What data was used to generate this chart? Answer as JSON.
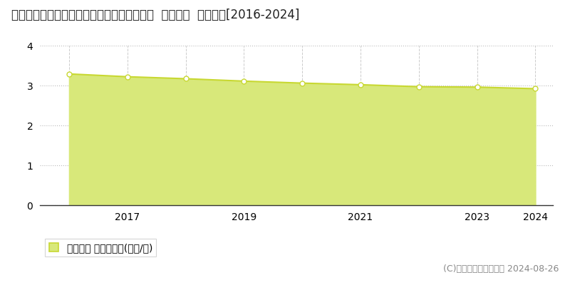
{
  "title": "新潟県上越市大字有間川字家浦８０９番１外  地価公示  地価推移[2016-2024]",
  "years": [
    2016,
    2017,
    2018,
    2019,
    2020,
    2021,
    2022,
    2023,
    2024
  ],
  "values": [
    3.29,
    3.22,
    3.17,
    3.11,
    3.06,
    3.02,
    2.97,
    2.96,
    2.92
  ],
  "ylim": [
    0,
    4
  ],
  "yticks": [
    0,
    1,
    2,
    3,
    4
  ],
  "line_color": "#c8d832",
  "fill_color": "#d8e87a",
  "fill_alpha": 1.0,
  "marker_face": "white",
  "grid_color_h": "#bbbbbb",
  "grid_color_v": "#aaaaaa",
  "bg_color": "#ffffff",
  "fig_bg_color": "#ffffff",
  "legend_label": "地価公示 平均坪単価(万円/坪)",
  "copyright_text": "(C)土地価格ドットコム 2024-08-26",
  "title_fontsize": 12,
  "axis_fontsize": 10,
  "legend_fontsize": 10,
  "copyright_fontsize": 9,
  "x_tick_years": [
    2017,
    2019,
    2021,
    2023,
    2024
  ]
}
